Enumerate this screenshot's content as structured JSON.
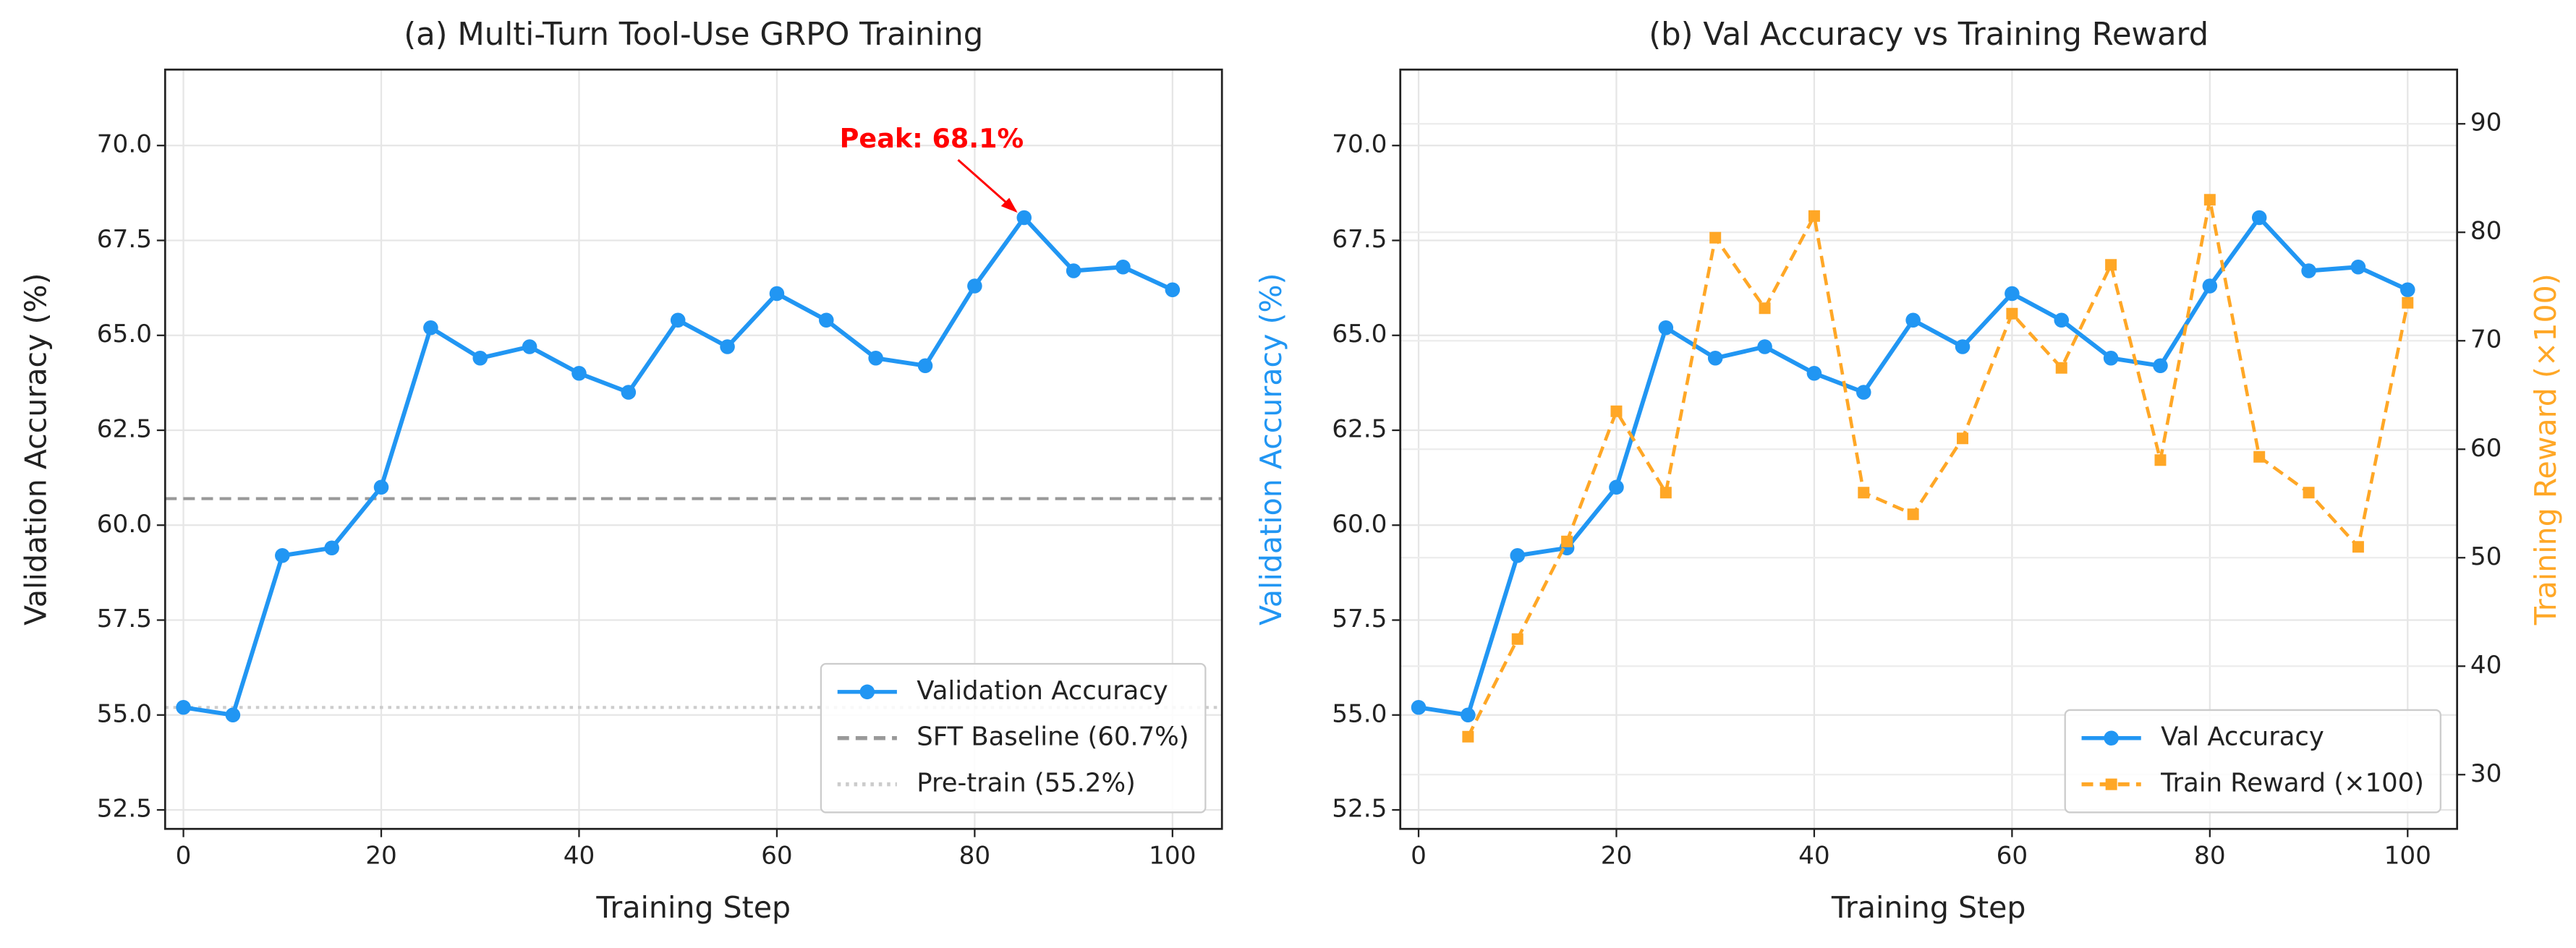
{
  "chart_data": [
    {
      "type": "line",
      "title": "(a) Multi-Turn Tool-Use GRPO Training",
      "xlabel": "Training Step",
      "ylabel": "Validation Accuracy (%)",
      "x": [
        0,
        5,
        10,
        15,
        20,
        25,
        30,
        35,
        40,
        45,
        50,
        55,
        60,
        65,
        70,
        75,
        80,
        85,
        90,
        95,
        100
      ],
      "series": [
        {
          "name": "Validation Accuracy",
          "color": "#2196f3",
          "linestyle": "solid",
          "marker": "circle",
          "values": [
            55.2,
            55.0,
            59.2,
            59.4,
            61.0,
            65.2,
            64.4,
            64.7,
            64.0,
            63.5,
            65.4,
            64.7,
            66.1,
            65.4,
            64.4,
            64.2,
            66.3,
            68.1,
            66.7,
            66.8,
            66.2
          ]
        }
      ],
      "hlines": [
        {
          "name": "SFT Baseline (60.7%)",
          "value": 60.7,
          "color": "#999999",
          "linestyle": "dashed"
        },
        {
          "name": "Pre-train (55.2%)",
          "value": 55.2,
          "color": "#cccccc",
          "linestyle": "dotted"
        }
      ],
      "annotation": {
        "text": "Peak: 68.1%",
        "x": 85,
        "y": 68.1,
        "color": "#ff0000"
      },
      "xlim": [
        -1.85,
        105
      ],
      "xticks": [
        0,
        20,
        40,
        60,
        80,
        100
      ],
      "ylim": [
        52,
        72
      ],
      "yticks": [
        {
          "value": 52.5,
          "label": "52.5"
        },
        {
          "value": 55,
          "label": "55.0"
        },
        {
          "value": 57.5,
          "label": "57.5"
        },
        {
          "value": 60,
          "label": "60.0"
        },
        {
          "value": 62.5,
          "label": "62.5"
        },
        {
          "value": 65,
          "label": "65.0"
        },
        {
          "value": 67.5,
          "label": "67.5"
        },
        {
          "value": 70,
          "label": "70.0"
        }
      ],
      "grid": true,
      "legend": "lower right"
    },
    {
      "type": "line",
      "title": "(b) Val Accuracy vs Training Reward",
      "xlabel": "Training Step",
      "ylabel": "Validation Accuracy (%)",
      "y2label": "Training Reward (×100)",
      "x": [
        0,
        5,
        10,
        15,
        20,
        25,
        30,
        35,
        40,
        45,
        50,
        55,
        60,
        65,
        70,
        75,
        80,
        85,
        90,
        95,
        100
      ],
      "series": [
        {
          "name": "Val Accuracy",
          "color": "#2196f3",
          "linestyle": "solid",
          "marker": "circle",
          "values": [
            55.2,
            55.0,
            59.2,
            59.4,
            61.0,
            65.2,
            64.4,
            64.7,
            64.0,
            63.5,
            65.4,
            64.7,
            66.1,
            65.4,
            64.4,
            64.2,
            66.3,
            68.1,
            66.7,
            66.8,
            66.2
          ]
        },
        {
          "name": "Train Reward (×100)",
          "color": "#ffa726",
          "linestyle": "dashed",
          "marker": "square",
          "axis": "y2",
          "values": [
            null,
            33.5,
            42.5,
            51.5,
            63.5,
            56.0,
            79.5,
            73.0,
            81.5,
            56.0,
            54.0,
            61.0,
            72.5,
            67.5,
            77.0,
            59.0,
            83.0,
            59.3,
            56.0,
            51.0,
            73.5
          ]
        }
      ],
      "xlim": [
        -1.85,
        105
      ],
      "xticks": [
        0,
        20,
        40,
        60,
        80,
        100
      ],
      "ylim": [
        52,
        72
      ],
      "yticks": [
        {
          "value": 52.5,
          "label": "52.5"
        },
        {
          "value": 55,
          "label": "55.0"
        },
        {
          "value": 57.5,
          "label": "57.5"
        },
        {
          "value": 60,
          "label": "60.0"
        },
        {
          "value": 62.5,
          "label": "62.5"
        },
        {
          "value": 65,
          "label": "65.0"
        },
        {
          "value": 67.5,
          "label": "67.5"
        },
        {
          "value": 70,
          "label": "70.0"
        }
      ],
      "y2lim": [
        25,
        95
      ],
      "y2ticks": [
        30,
        40,
        50,
        60,
        70,
        80,
        90
      ],
      "grid": true,
      "legend": "lower right"
    }
  ]
}
